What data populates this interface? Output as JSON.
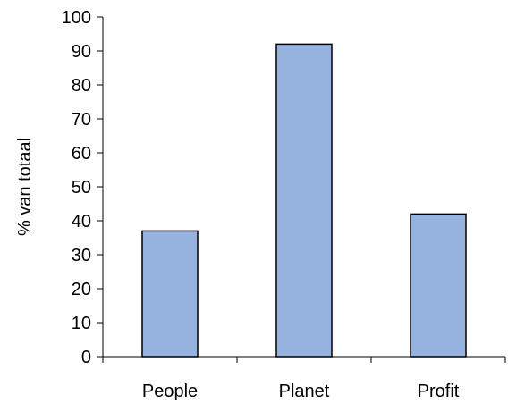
{
  "chart_data": {
    "type": "bar",
    "title": "",
    "xlabel": "",
    "ylabel": "% van totaal",
    "categories": [
      "People",
      "Planet",
      "Profit"
    ],
    "values": [
      37,
      92,
      42
    ],
    "ylim": [
      0,
      100
    ],
    "yticks": [
      0,
      10,
      20,
      30,
      40,
      50,
      60,
      70,
      80,
      90,
      100
    ],
    "grid": false,
    "legend": "none",
    "bar_fill": "#95b3de",
    "bar_stroke": "#000000"
  }
}
